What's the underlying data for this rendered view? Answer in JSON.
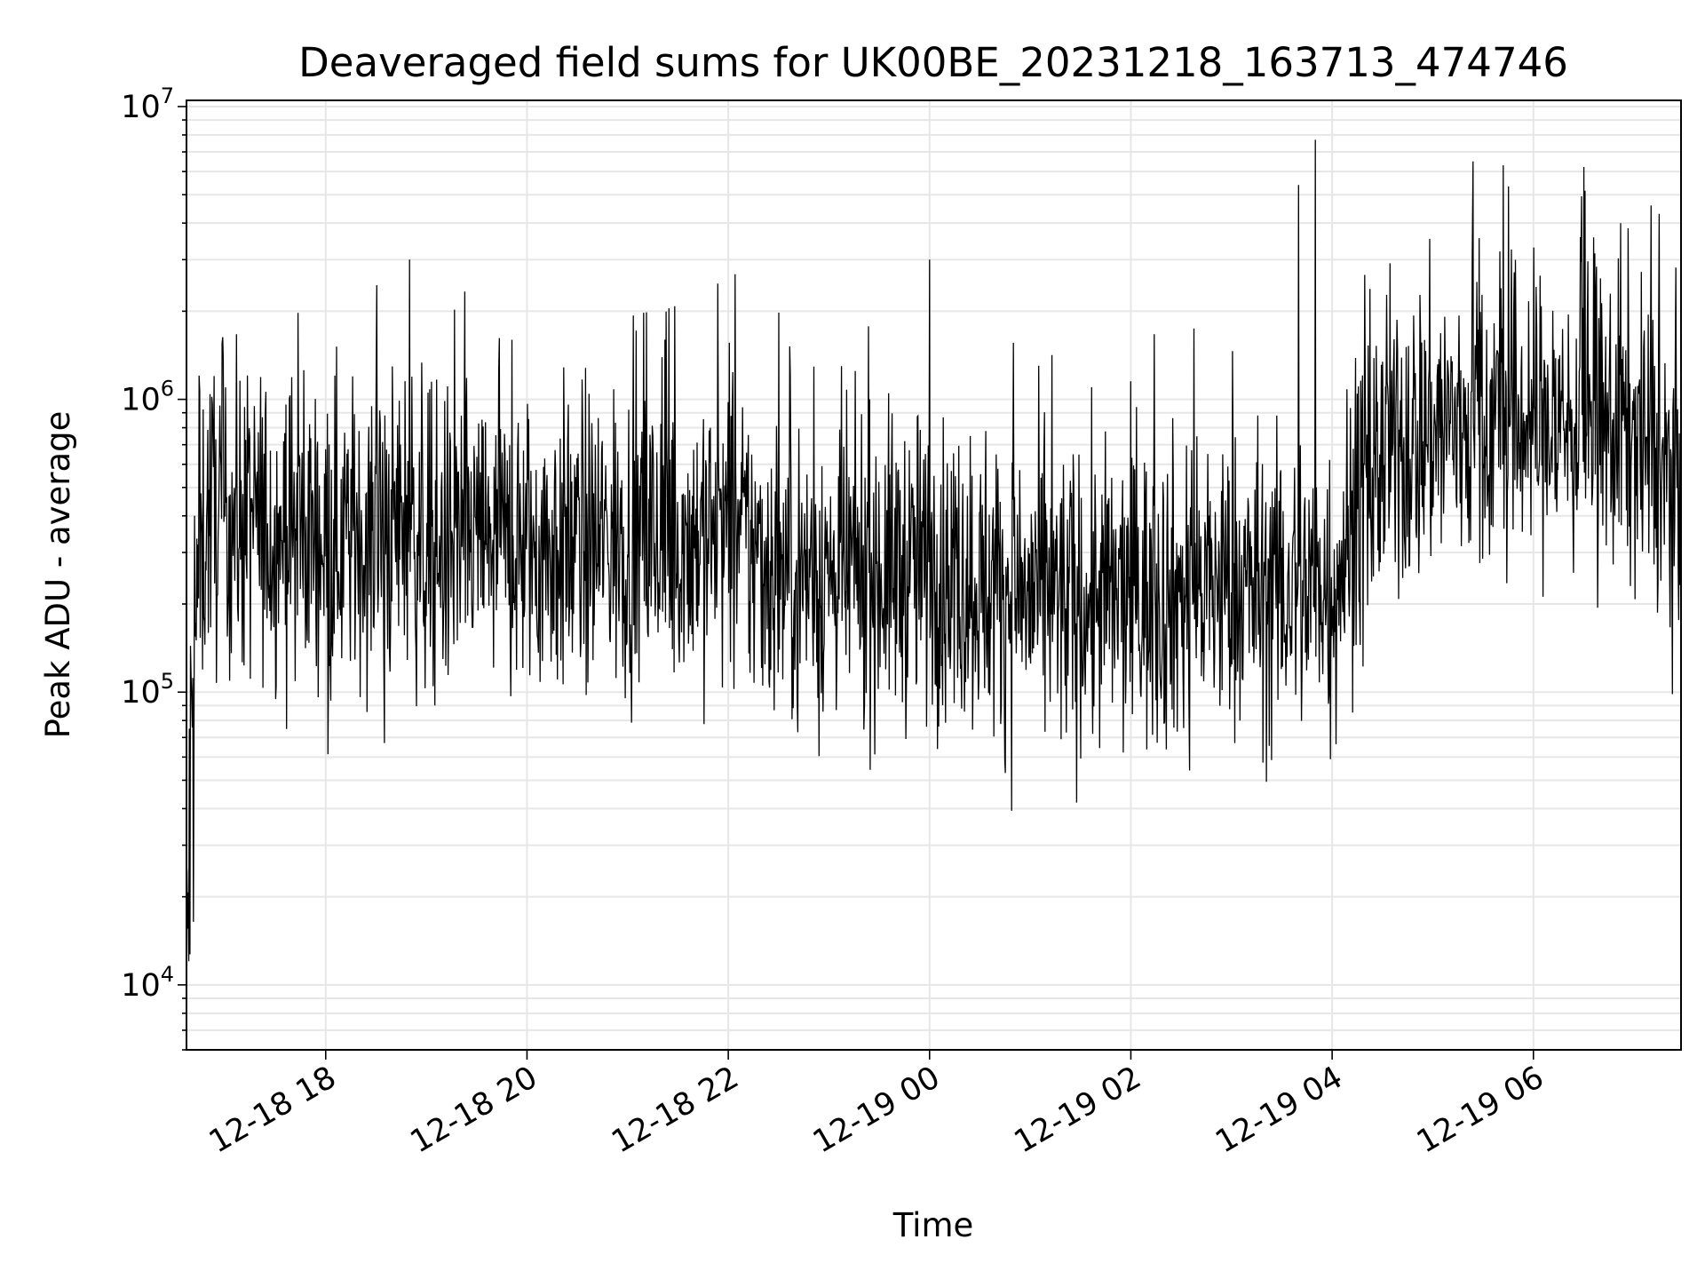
{
  "chart_data": {
    "type": "line",
    "title": "Deaveraged field sums for UK00BE_20231218_163713_474746",
    "xlabel": "Time",
    "ylabel": "Peak ADU - average",
    "yscale": "log",
    "ylim": [
      6000,
      10500000
    ],
    "xlim": [
      "2023-12-18 16:37",
      "2023-12-19 07:28"
    ],
    "grid": true,
    "line_color": "#000000",
    "grid_color": "#e6e6e6",
    "x_ticks": [
      "12-18 18",
      "12-18 20",
      "12-18 22",
      "12-19 00",
      "12-19 02",
      "12-19 04",
      "12-19 06"
    ],
    "x_tick_times": [
      "2023-12-18 18:00",
      "2023-12-18 20:00",
      "2023-12-18 22:00",
      "2023-12-19 00:00",
      "2023-12-19 02:00",
      "2023-12-19 04:00",
      "2023-12-19 06:00"
    ],
    "y_ticks": [
      {
        "base": "10",
        "exp": "4",
        "value": 10000
      },
      {
        "base": "10",
        "exp": "5",
        "value": 100000
      },
      {
        "base": "10",
        "exp": "6",
        "value": 1000000
      },
      {
        "base": "10",
        "exp": "7",
        "value": 10000000
      }
    ],
    "series": [
      {
        "x": [
          "2023-12-18 16:37",
          "2023-12-18 16:40",
          "2023-12-18 16:44",
          "2023-12-18 16:50",
          "2023-12-18 17:00",
          "2023-12-18 17:30",
          "2023-12-18 18:00",
          "2023-12-18 18:30",
          "2023-12-18 18:50",
          "2023-12-18 19:00",
          "2023-12-18 19:30",
          "2023-12-18 20:00",
          "2023-12-18 20:30",
          "2023-12-18 21:00",
          "2023-12-18 21:30",
          "2023-12-18 22:00",
          "2023-12-18 22:30",
          "2023-12-18 23:00",
          "2023-12-18 23:30",
          "2023-12-19 00:00",
          "2023-12-19 00:30",
          "2023-12-19 01:00",
          "2023-12-19 01:30",
          "2023-12-19 02:00",
          "2023-12-19 02:30",
          "2023-12-19 03:00",
          "2023-12-19 03:30",
          "2023-12-19 04:00",
          "2023-12-19 04:30",
          "2023-12-19 05:00",
          "2023-12-19 05:30",
          "2023-12-19 06:00",
          "2023-12-19 06:30",
          "2023-12-19 07:00",
          "2023-12-19 07:25"
        ],
        "y": [
          9000,
          60000,
          250000,
          420000,
          400000,
          360000,
          350000,
          330000,
          400000,
          300000,
          330000,
          310000,
          320000,
          330000,
          330000,
          360000,
          260000,
          250000,
          260000,
          270000,
          240000,
          210000,
          200000,
          210000,
          220000,
          230000,
          220000,
          240000,
          650000,
          800000,
          850000,
          850000,
          800000,
          780000,
          500000
        ],
        "spikes": [
          {
            "x": "2023-12-18 18:50",
            "y": 3000000
          },
          {
            "x": "2023-12-19 00:00",
            "y": 3000000
          },
          {
            "x": "2023-12-19 03:40",
            "y": 5400000
          },
          {
            "x": "2023-12-19 03:50",
            "y": 7700000
          },
          {
            "x": "2023-12-19 05:24",
            "y": 6500000
          },
          {
            "x": "2023-12-19 05:42",
            "y": 6300000
          },
          {
            "x": "2023-12-19 06:52",
            "y": 4000000
          },
          {
            "x": "2023-12-19 07:15",
            "y": 4300000
          }
        ],
        "dips": [
          {
            "x": "2023-12-18 18:35",
            "y": 67000
          },
          {
            "x": "2023-12-19 02:35",
            "y": 54000
          },
          {
            "x": "2023-12-19 03:59",
            "y": 59000
          }
        ]
      }
    ]
  }
}
